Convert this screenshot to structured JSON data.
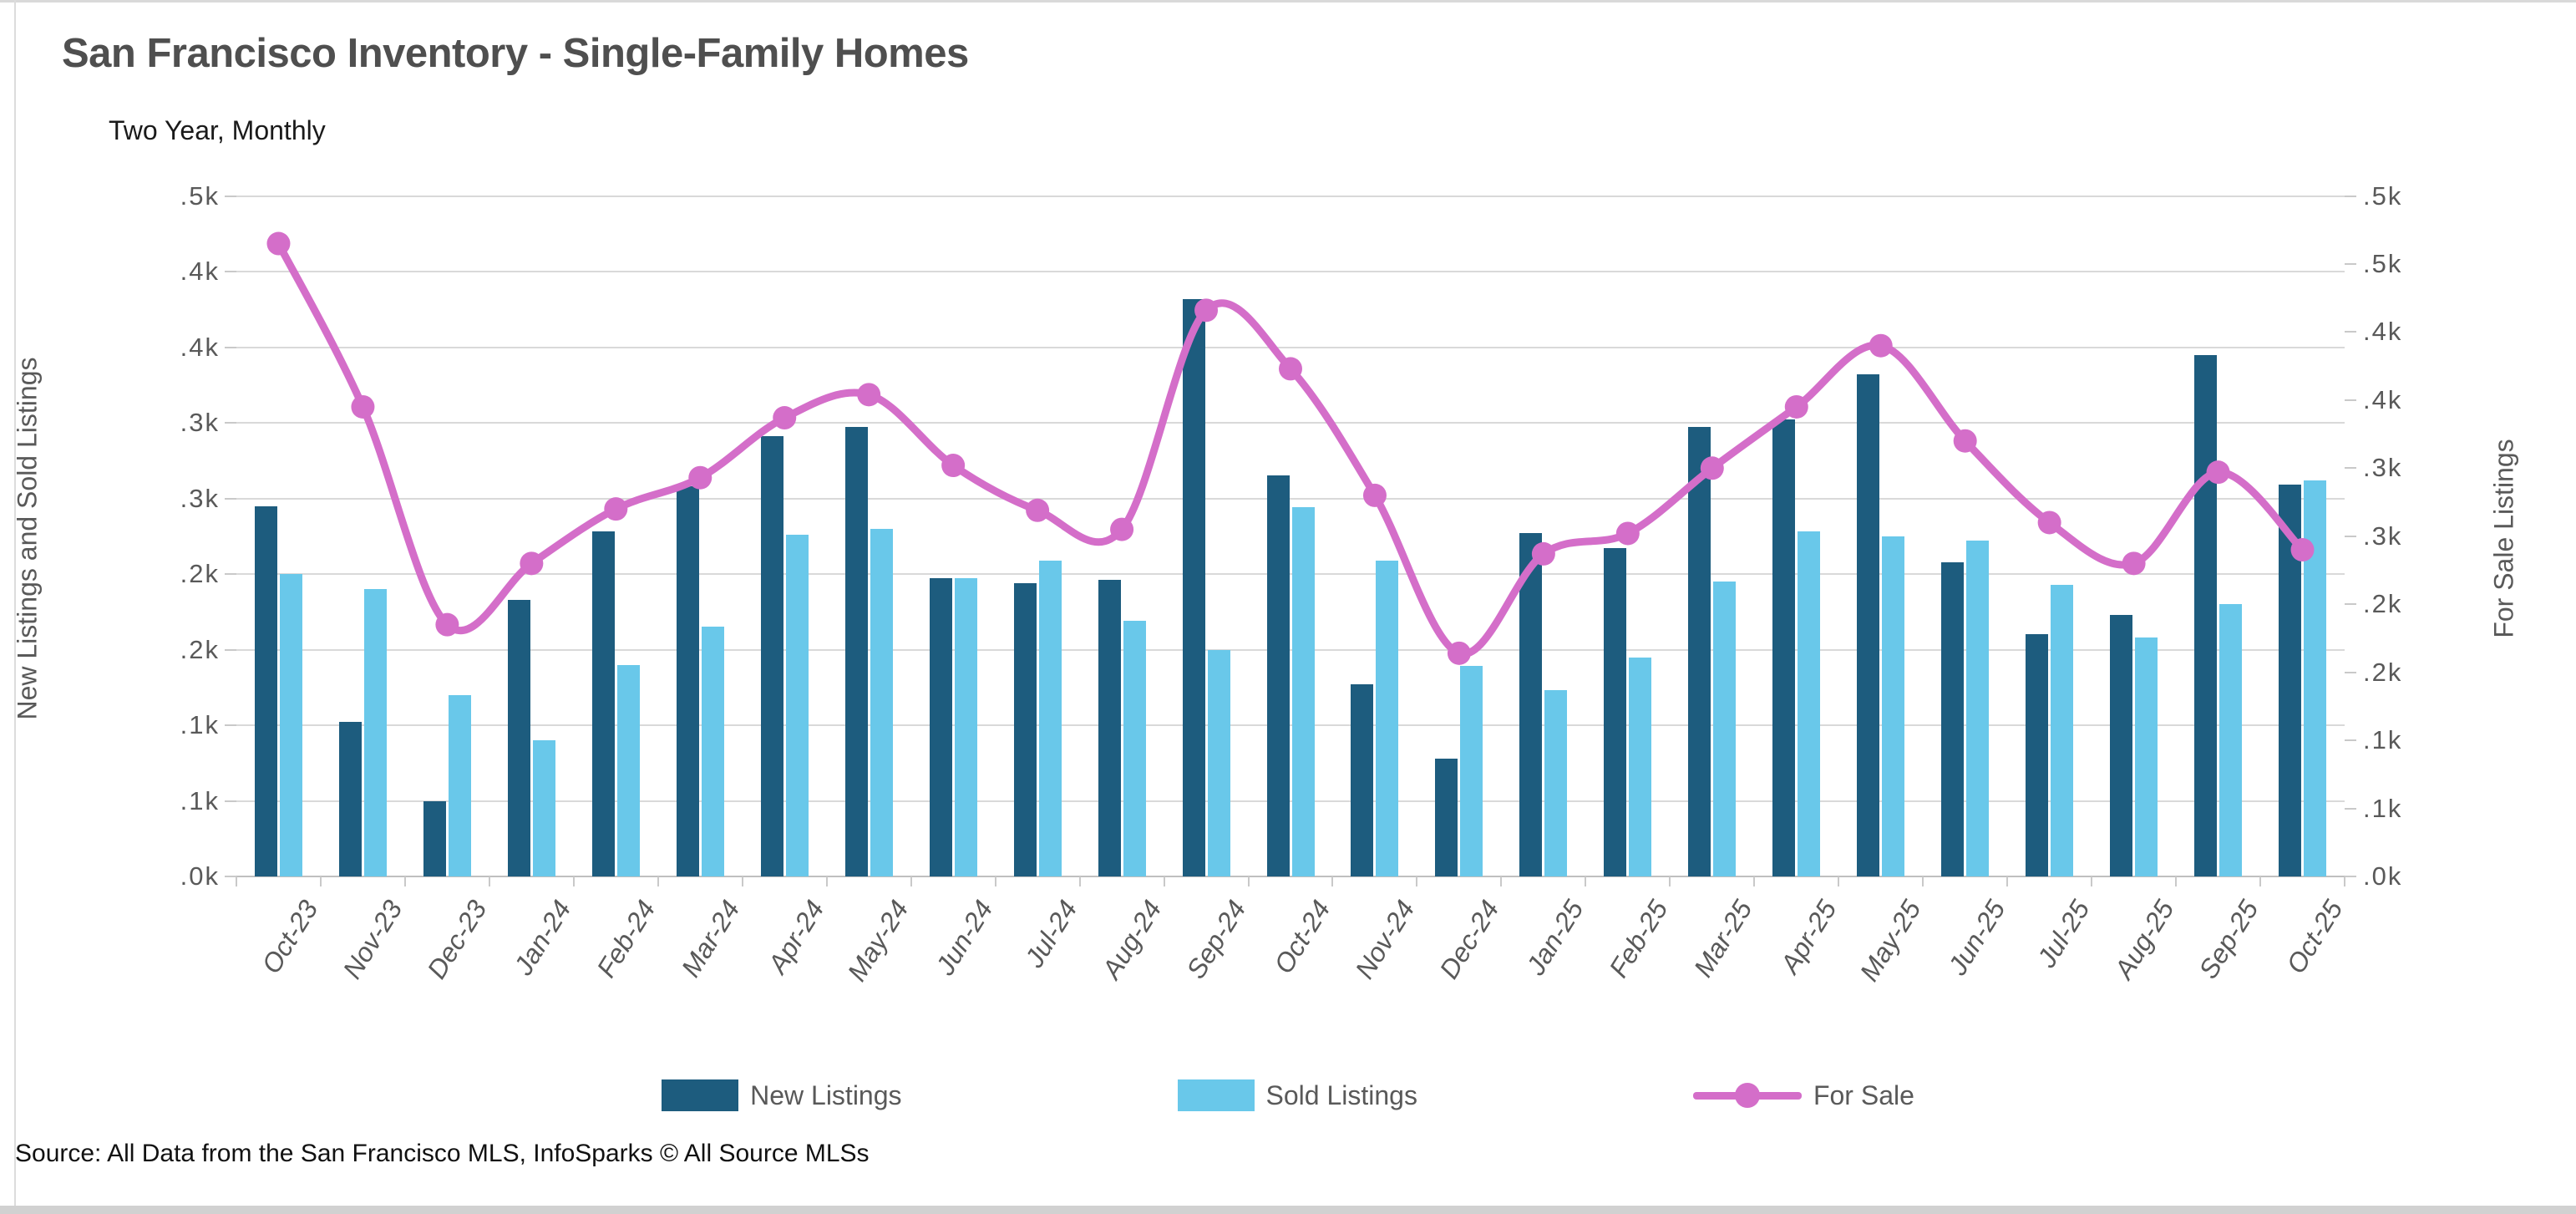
{
  "title": "San Francisco Inventory - Single-Family Homes",
  "subtitle": "Two Year, Monthly",
  "source": "Source: All Data from the San Francisco MLS, InfoSparks © All Source MLSs",
  "colors": {
    "new_listings": "#1d5c7e",
    "sold_listings": "#69c8ea",
    "for_sale": "#d46ec9",
    "grid": "#d9d9d9",
    "axis_text": "#595959",
    "title_text": "#4f4f4f"
  },
  "chart_data": {
    "type": "bar",
    "subtype": "grouped bars with overlaid line",
    "title": "San Francisco Inventory - Single-Family Homes",
    "subtitle": "Two Year, Monthly",
    "grid": true,
    "legend_position": "bottom",
    "categories": [
      "Oct-23",
      "Nov-23",
      "Dec-23",
      "Jan-24",
      "Feb-24",
      "Mar-24",
      "Apr-24",
      "May-24",
      "Jun-24",
      "Jul-24",
      "Aug-24",
      "Sep-24",
      "Oct-24",
      "Nov-24",
      "Dec-24",
      "Jan-25",
      "Feb-25",
      "Mar-25",
      "Apr-25",
      "May-25",
      "Jun-25",
      "Jul-25",
      "Aug-25",
      "Sep-25",
      "Oct-25"
    ],
    "series": [
      {
        "name": "New Listings",
        "type": "bar",
        "axis": "left",
        "color": "#1d5c7e",
        "values": [
          245,
          102,
          50,
          183,
          228,
          258,
          291,
          297,
          197,
          194,
          196,
          382,
          265,
          127,
          78,
          227,
          217,
          297,
          302,
          332,
          208,
          160,
          173,
          345,
          259
        ]
      },
      {
        "name": "Sold Listings",
        "type": "bar",
        "axis": "left",
        "color": "#69c8ea",
        "values": [
          200,
          190,
          120,
          90,
          140,
          165,
          226,
          230,
          197,
          209,
          169,
          150,
          244,
          209,
          139,
          123,
          145,
          195,
          228,
          225,
          222,
          193,
          158,
          180,
          262
        ]
      },
      {
        "name": "For Sale",
        "type": "line",
        "axis": "right",
        "color": "#d46ec9",
        "values": [
          465,
          345,
          185,
          230,
          270,
          293,
          337,
          354,
          302,
          269,
          255,
          416,
          373,
          280,
          164,
          237,
          252,
          300,
          345,
          390,
          320,
          260,
          230,
          297,
          240
        ]
      }
    ],
    "left_axis": {
      "title": "New Listings and Sold Listings",
      "range": [
        0,
        450
      ],
      "tick_step": 50,
      "tick_labels_bottom_to_top": [
        ".0k",
        ".1k",
        ".1k",
        ".2k",
        ".2k",
        ".3k",
        ".3k",
        ".4k",
        ".4k",
        ".5k"
      ]
    },
    "right_axis": {
      "title": "For Sale Listings",
      "range": [
        0,
        500
      ],
      "tick_step": 50,
      "tick_labels_bottom_to_top": [
        ".0k",
        ".1k",
        ".1k",
        ".2k",
        ".2k",
        ".3k",
        ".3k",
        ".4k",
        ".4k",
        ".5k",
        ".5k"
      ]
    }
  }
}
